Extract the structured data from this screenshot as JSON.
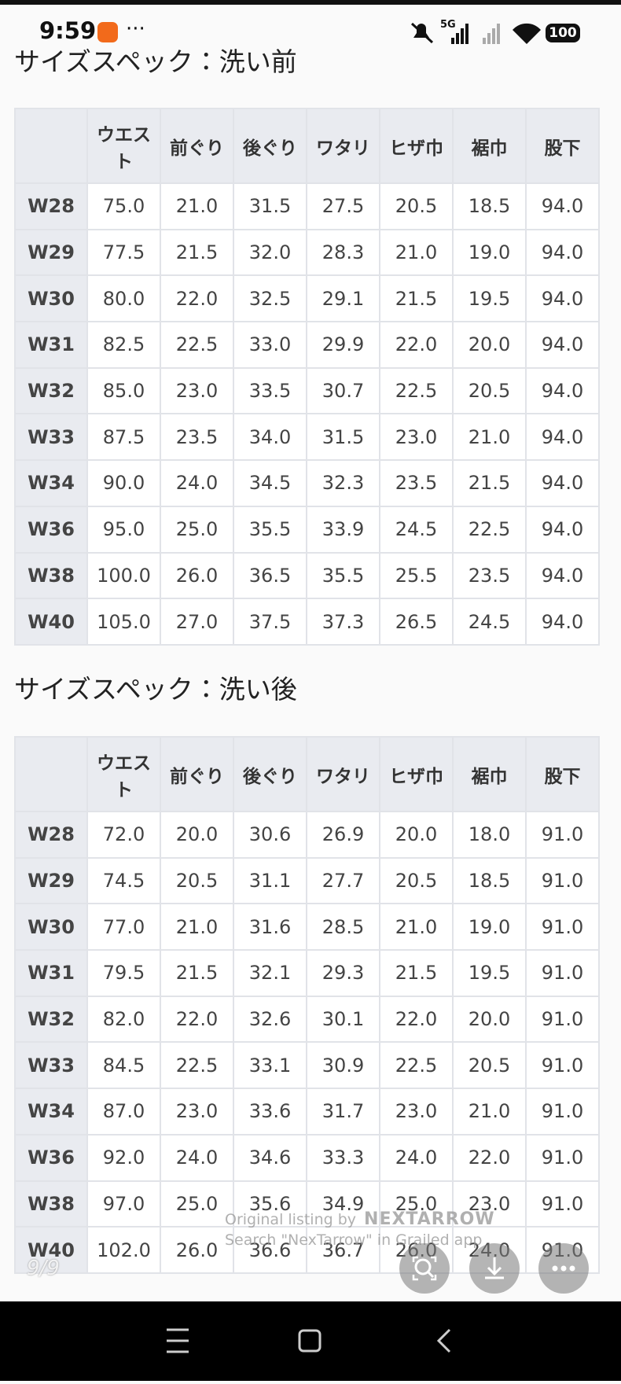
{
  "status_bar": {
    "time": "9:59",
    "network": "5G",
    "battery": "100"
  },
  "sections": [
    {
      "title": "サイズスペック：洗い前",
      "headers": [
        "ウエスト",
        "前ぐり",
        "後ぐり",
        "ワタリ",
        "ヒザ巾",
        "裾巾",
        "股下"
      ],
      "rows": [
        [
          "W28",
          "75.0",
          "21.0",
          "31.5",
          "27.5",
          "20.5",
          "18.5",
          "94.0"
        ],
        [
          "W29",
          "77.5",
          "21.5",
          "32.0",
          "28.3",
          "21.0",
          "19.0",
          "94.0"
        ],
        [
          "W30",
          "80.0",
          "22.0",
          "32.5",
          "29.1",
          "21.5",
          "19.5",
          "94.0"
        ],
        [
          "W31",
          "82.5",
          "22.5",
          "33.0",
          "29.9",
          "22.0",
          "20.0",
          "94.0"
        ],
        [
          "W32",
          "85.0",
          "23.0",
          "33.5",
          "30.7",
          "22.5",
          "20.5",
          "94.0"
        ],
        [
          "W33",
          "87.5",
          "23.5",
          "34.0",
          "31.5",
          "23.0",
          "21.0",
          "94.0"
        ],
        [
          "W34",
          "90.0",
          "24.0",
          "34.5",
          "32.3",
          "23.5",
          "21.5",
          "94.0"
        ],
        [
          "W36",
          "95.0",
          "25.0",
          "35.5",
          "33.9",
          "24.5",
          "22.5",
          "94.0"
        ],
        [
          "W38",
          "100.0",
          "26.0",
          "36.5",
          "35.5",
          "25.5",
          "23.5",
          "94.0"
        ],
        [
          "W40",
          "105.0",
          "27.0",
          "37.5",
          "37.3",
          "26.5",
          "24.5",
          "94.0"
        ]
      ]
    },
    {
      "title": "サイズスペック：洗い後",
      "headers": [
        "ウエスト",
        "前ぐり",
        "後ぐり",
        "ワタリ",
        "ヒザ巾",
        "裾巾",
        "股下"
      ],
      "rows": [
        [
          "W28",
          "72.0",
          "20.0",
          "30.6",
          "26.9",
          "20.0",
          "18.0",
          "91.0"
        ],
        [
          "W29",
          "74.5",
          "20.5",
          "31.1",
          "27.7",
          "20.5",
          "18.5",
          "91.0"
        ],
        [
          "W30",
          "77.0",
          "21.0",
          "31.6",
          "28.5",
          "21.0",
          "19.0",
          "91.0"
        ],
        [
          "W31",
          "79.5",
          "21.5",
          "32.1",
          "29.3",
          "21.5",
          "19.5",
          "91.0"
        ],
        [
          "W32",
          "82.0",
          "22.0",
          "32.6",
          "30.1",
          "22.0",
          "20.0",
          "91.0"
        ],
        [
          "W33",
          "84.5",
          "22.5",
          "33.1",
          "30.9",
          "22.5",
          "20.5",
          "91.0"
        ],
        [
          "W34",
          "87.0",
          "23.0",
          "33.6",
          "31.7",
          "23.0",
          "21.0",
          "91.0"
        ],
        [
          "W36",
          "92.0",
          "24.0",
          "34.6",
          "33.3",
          "24.0",
          "22.0",
          "91.0"
        ],
        [
          "W38",
          "97.0",
          "25.0",
          "35.6",
          "34.9",
          "25.0",
          "23.0",
          "91.0"
        ],
        [
          "W40",
          "102.0",
          "26.0",
          "36.6",
          "36.7",
          "26.0",
          "24.0",
          "91.0"
        ]
      ]
    }
  ],
  "overlay": {
    "line1": "Original listing by",
    "brand": "NEXTARROW",
    "line2": "Search \"NexTarrow\" in Grailed app",
    "page": "9/9"
  }
}
